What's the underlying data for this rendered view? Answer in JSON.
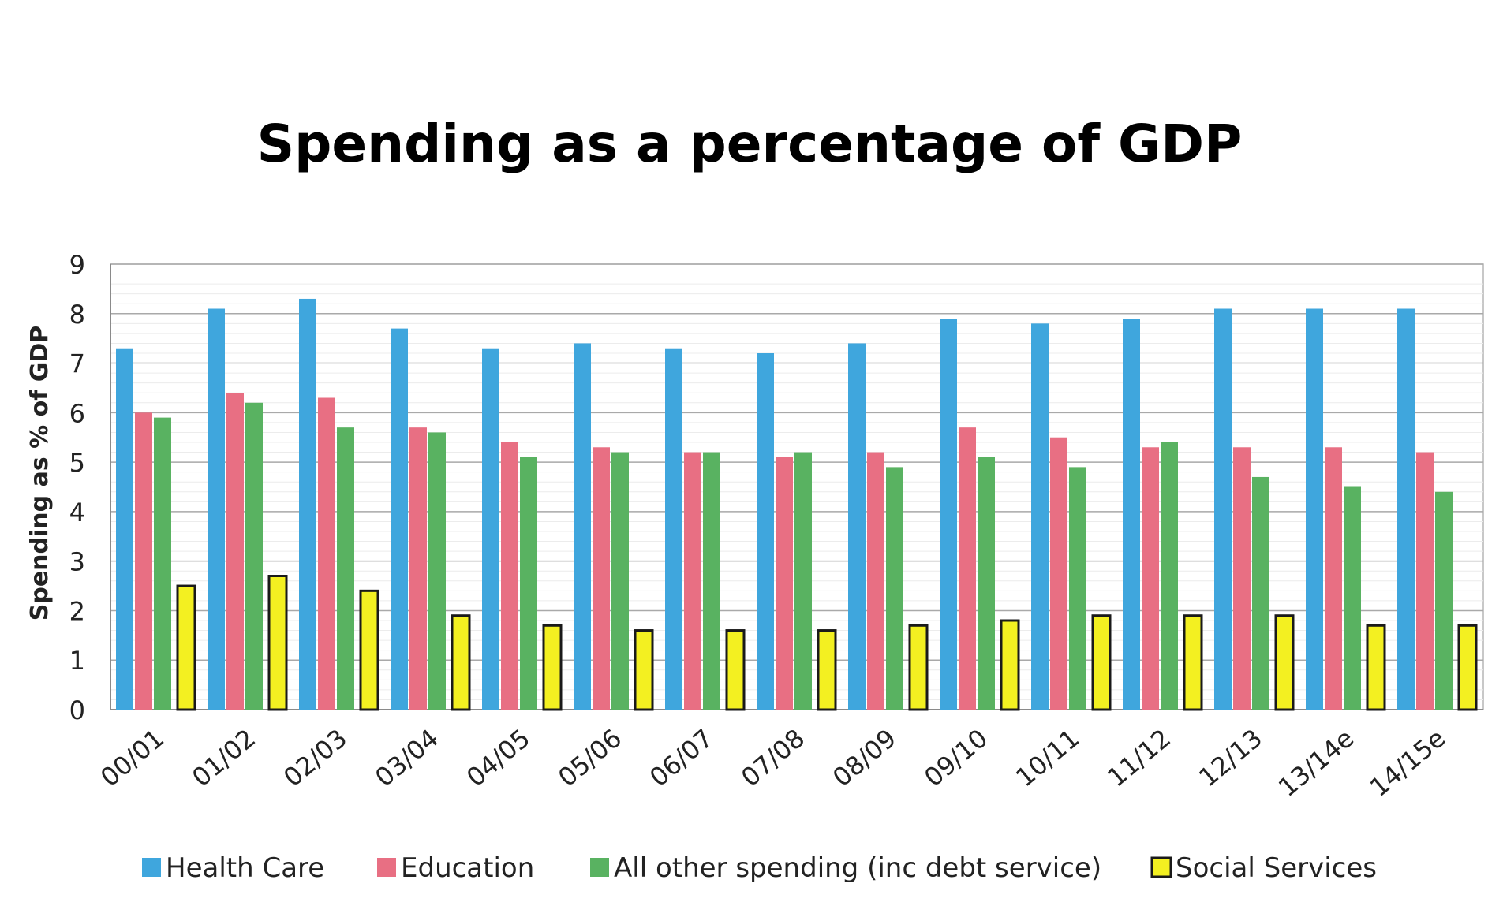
{
  "chart_data": {
    "type": "bar",
    "title": "Spending as a percentage of GDP",
    "xlabel": "",
    "ylabel": "Spending as % of GDP",
    "ylim": [
      0,
      9
    ],
    "yticks": [
      0,
      1,
      2,
      3,
      4,
      5,
      6,
      7,
      8,
      9
    ],
    "grid": true,
    "legend_position": "bottom",
    "categories": [
      "00/01",
      "01/02",
      "02/03",
      "03/04",
      "04/05",
      "05/06",
      "06/07",
      "07/08",
      "08/09",
      "09/10",
      "10/11",
      "11/12",
      "12/13",
      "13/14e",
      "14/15e"
    ],
    "series": [
      {
        "name": "Health Care",
        "color": "#3fa6dd",
        "values": [
          7.3,
          8.1,
          8.3,
          7.7,
          7.3,
          7.4,
          7.3,
          7.2,
          7.4,
          7.9,
          7.8,
          7.9,
          8.1,
          8.1,
          8.1
        ]
      },
      {
        "name": "Education",
        "color": "#e86f83",
        "values": [
          6.0,
          6.4,
          6.3,
          5.7,
          5.4,
          5.3,
          5.2,
          5.1,
          5.2,
          5.7,
          5.5,
          5.3,
          5.3,
          5.3,
          5.2
        ]
      },
      {
        "name": "All other spending (inc debt service)",
        "color": "#59b261",
        "values": [
          5.9,
          6.2,
          5.7,
          5.6,
          5.1,
          5.2,
          5.2,
          5.2,
          4.9,
          5.1,
          4.9,
          5.4,
          4.7,
          4.5,
          4.4
        ]
      },
      {
        "name": "Social Services",
        "color": "#f3f021",
        "values": [
          2.5,
          2.7,
          2.4,
          1.9,
          1.7,
          1.6,
          1.6,
          1.6,
          1.7,
          1.8,
          1.9,
          1.9,
          1.9,
          1.7,
          1.7
        ]
      }
    ]
  }
}
